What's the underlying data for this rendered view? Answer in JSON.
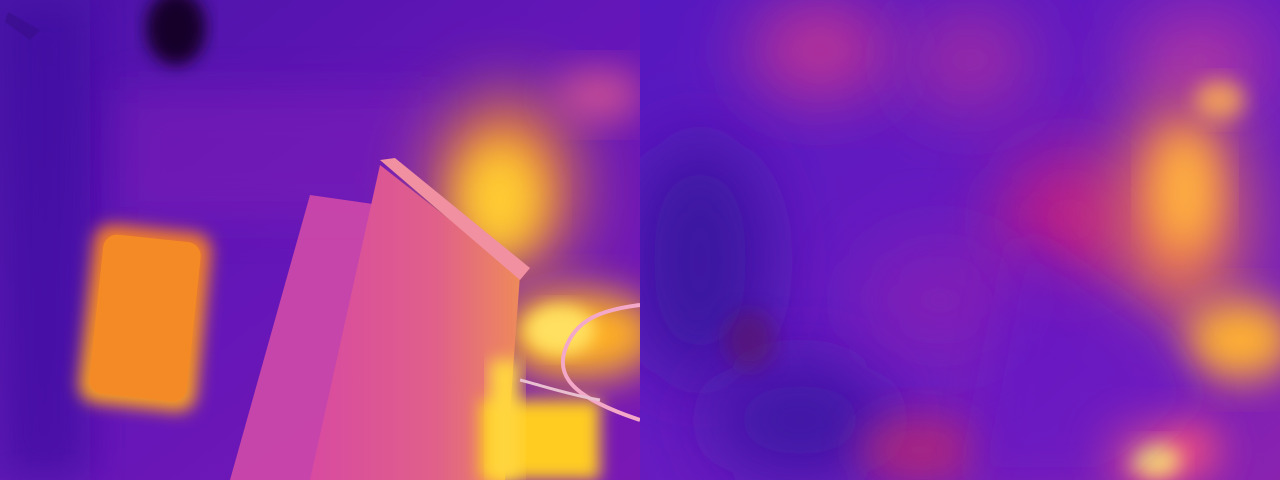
{
  "image": {
    "layout": "side-by-side",
    "palette": "thermal-plasma",
    "panels": [
      {
        "id": "left",
        "description_kind": "thermal-photo",
        "base_color": "#6a14b8"
      },
      {
        "id": "right",
        "description_kind": "thermal-reconstruction",
        "base_color": "#5c1cc4"
      }
    ]
  }
}
